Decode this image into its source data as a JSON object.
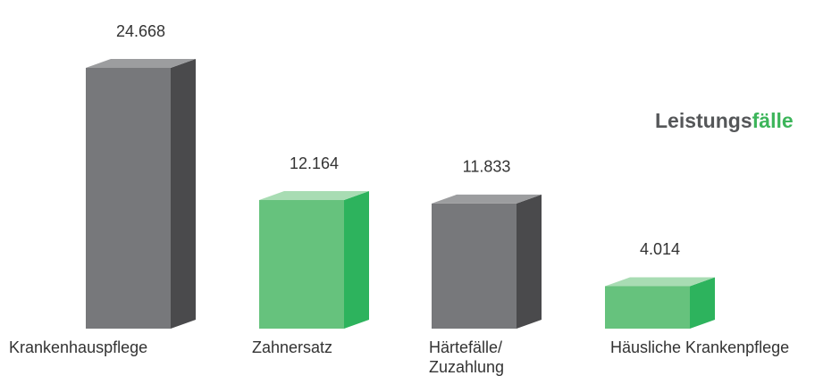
{
  "chart_data": {
    "type": "bar3d",
    "title_parts": [
      {
        "text": "Leistungs",
        "color": "#555759"
      },
      {
        "text": "fälle",
        "color": "#3cb55a"
      }
    ],
    "categories": [
      "Krankenhauspflege",
      "Zahnersatz",
      "Härtefälle/ Zuzahlung",
      "Häusliche Krankenpflege"
    ],
    "values": [
      24668,
      12164,
      11833,
      4014
    ],
    "value_labels": [
      "24.668",
      "12.164",
      "11.833",
      "4.014"
    ],
    "colors": [
      "#77787b",
      "#66c27d",
      "#77787b",
      "#66c27d"
    ],
    "side_colors": [
      "#4a4a4c",
      "#2db35d",
      "#4a4a4c",
      "#2db35d"
    ],
    "top_colors": [
      "#9c9d9f",
      "#a8dcb3",
      "#9c9d9f",
      "#a8dcb3"
    ]
  }
}
